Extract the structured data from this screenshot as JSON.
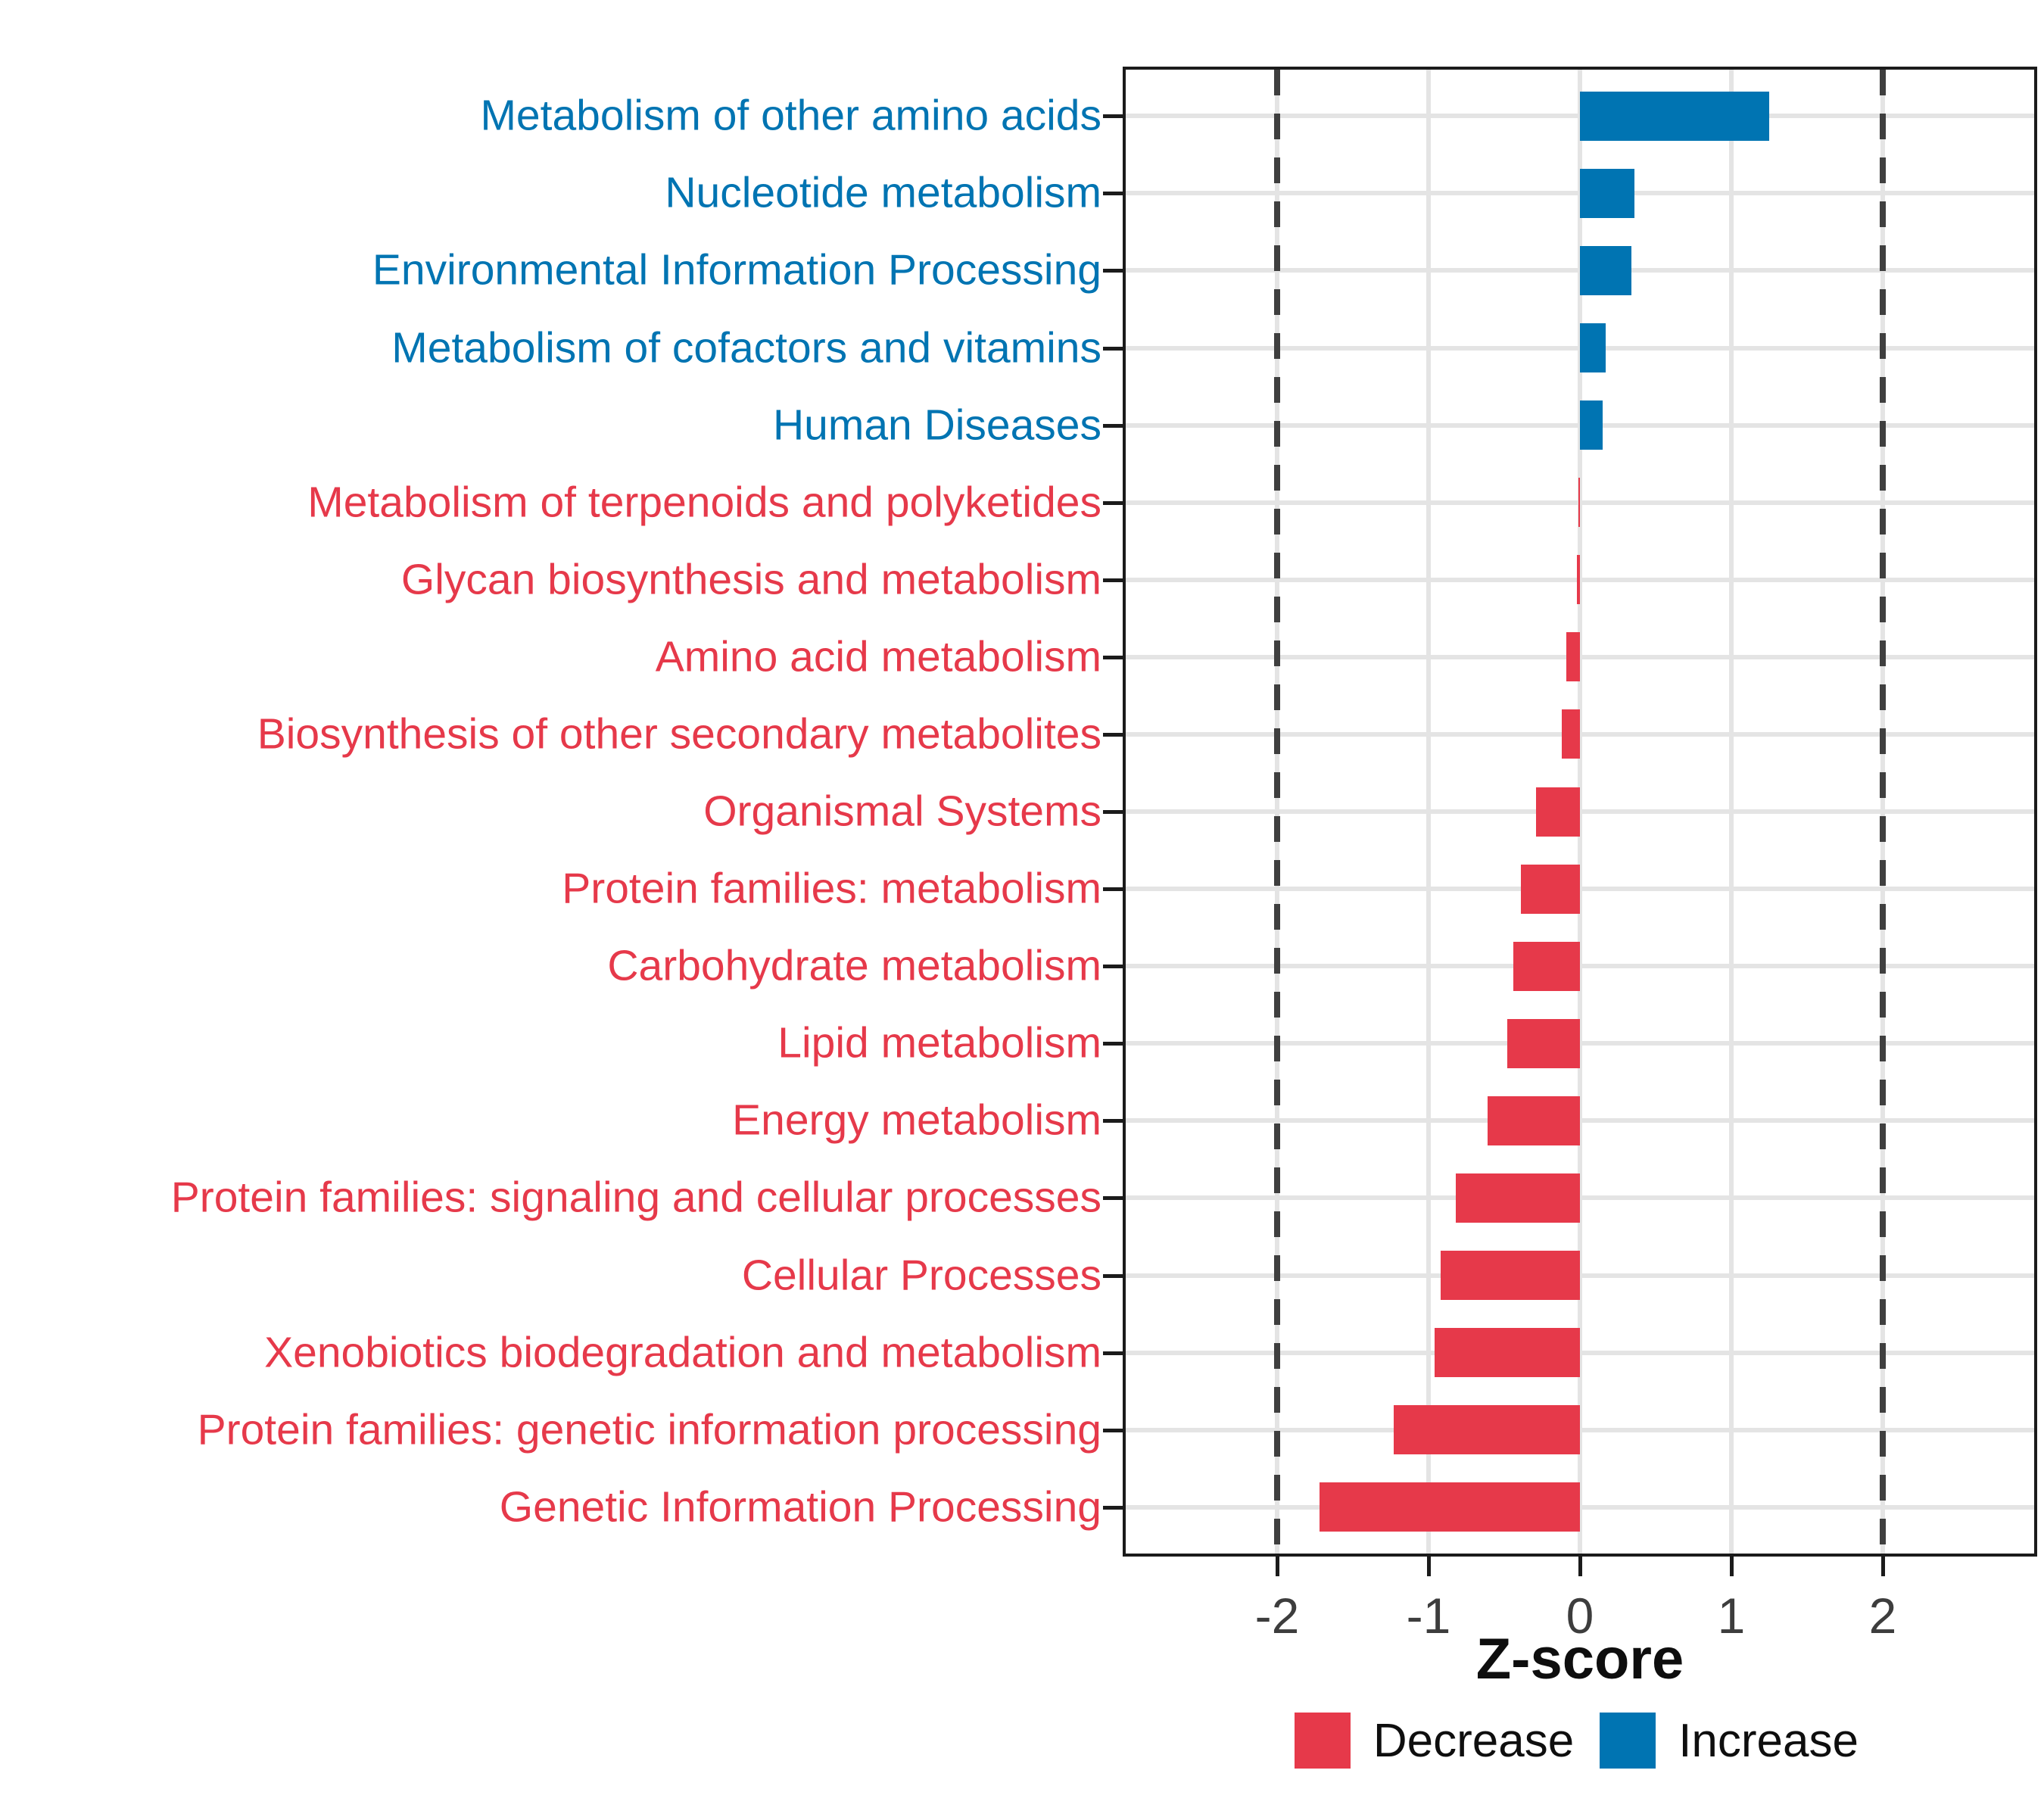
{
  "chart": {
    "xlabel": "Z-score"
  },
  "legend": {
    "items": [
      {
        "key": "decrease",
        "label": "Decrease",
        "color": "#E6394A"
      },
      {
        "key": "increase",
        "label": "Increase",
        "color": "#0074B2"
      }
    ]
  },
  "chart_data": {
    "type": "bar",
    "orientation": "horizontal",
    "title": "",
    "xlabel": "Z-score",
    "ylabel": "",
    "xlim": [
      -3,
      3
    ],
    "x_ticks": [
      "-2",
      "-1",
      "0",
      "1",
      "2"
    ],
    "x_tick_values": [
      -2,
      -1,
      0,
      1,
      2
    ],
    "reference_lines_x": [
      -2,
      2
    ],
    "grid": true,
    "legend_position": "bottom-right",
    "categories": [
      "Metabolism of other amino acids",
      "Nucleotide metabolism",
      "Environmental Information Processing",
      "Metabolism of cofactors and vitamins",
      "Human Diseases",
      "Metabolism of terpenoids and polyketides",
      "Glycan biosynthesis and metabolism",
      "Amino acid metabolism",
      "Biosynthesis of other secondary metabolites",
      "Organismal Systems",
      "Protein families: metabolism",
      "Carbohydrate metabolism",
      "Lipid metabolism",
      "Energy metabolism",
      "Protein families: signaling and cellular processes",
      "Cellular Processes",
      "Xenobiotics biodegradation and metabolism",
      "Protein families: genetic information processing",
      "Genetic Information Processing"
    ],
    "values": [
      1.25,
      0.36,
      0.34,
      0.17,
      0.15,
      -0.01,
      -0.02,
      -0.09,
      -0.12,
      -0.29,
      -0.39,
      -0.44,
      -0.48,
      -0.61,
      -0.82,
      -0.92,
      -0.96,
      -1.23,
      -1.72
    ],
    "groups": [
      "increase",
      "increase",
      "increase",
      "increase",
      "increase",
      "decrease",
      "decrease",
      "decrease",
      "decrease",
      "decrease",
      "decrease",
      "decrease",
      "decrease",
      "decrease",
      "decrease",
      "decrease",
      "decrease",
      "decrease",
      "decrease"
    ],
    "series_colors": {
      "increase": "#0074B2",
      "decrease": "#E6394A"
    }
  }
}
